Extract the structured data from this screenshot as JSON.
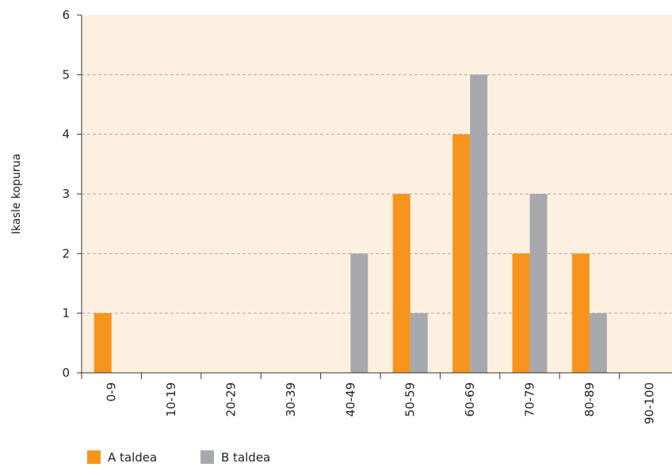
{
  "chart_data": {
    "type": "bar",
    "ylabel": "Ikasle kopurua",
    "categories": [
      "0-9",
      "10-19",
      "20-29",
      "30-39",
      "40-49",
      "50-59",
      "60-69",
      "70-79",
      "80-89",
      "90-100"
    ],
    "series": [
      {
        "name": "A taldea",
        "color": "#f7941d",
        "values": [
          1,
          0,
          0,
          0,
          0,
          3,
          4,
          2,
          2,
          0
        ]
      },
      {
        "name": "B taldea",
        "color": "#a7a9ac",
        "values": [
          0,
          0,
          0,
          0,
          2,
          1,
          5,
          3,
          1,
          0
        ]
      }
    ],
    "ylim": [
      0,
      6
    ],
    "yticks": [
      0,
      1,
      2,
      3,
      4,
      5,
      6
    ],
    "grid": true,
    "legend": "bottom-left",
    "background": "#fdf0e1"
  }
}
